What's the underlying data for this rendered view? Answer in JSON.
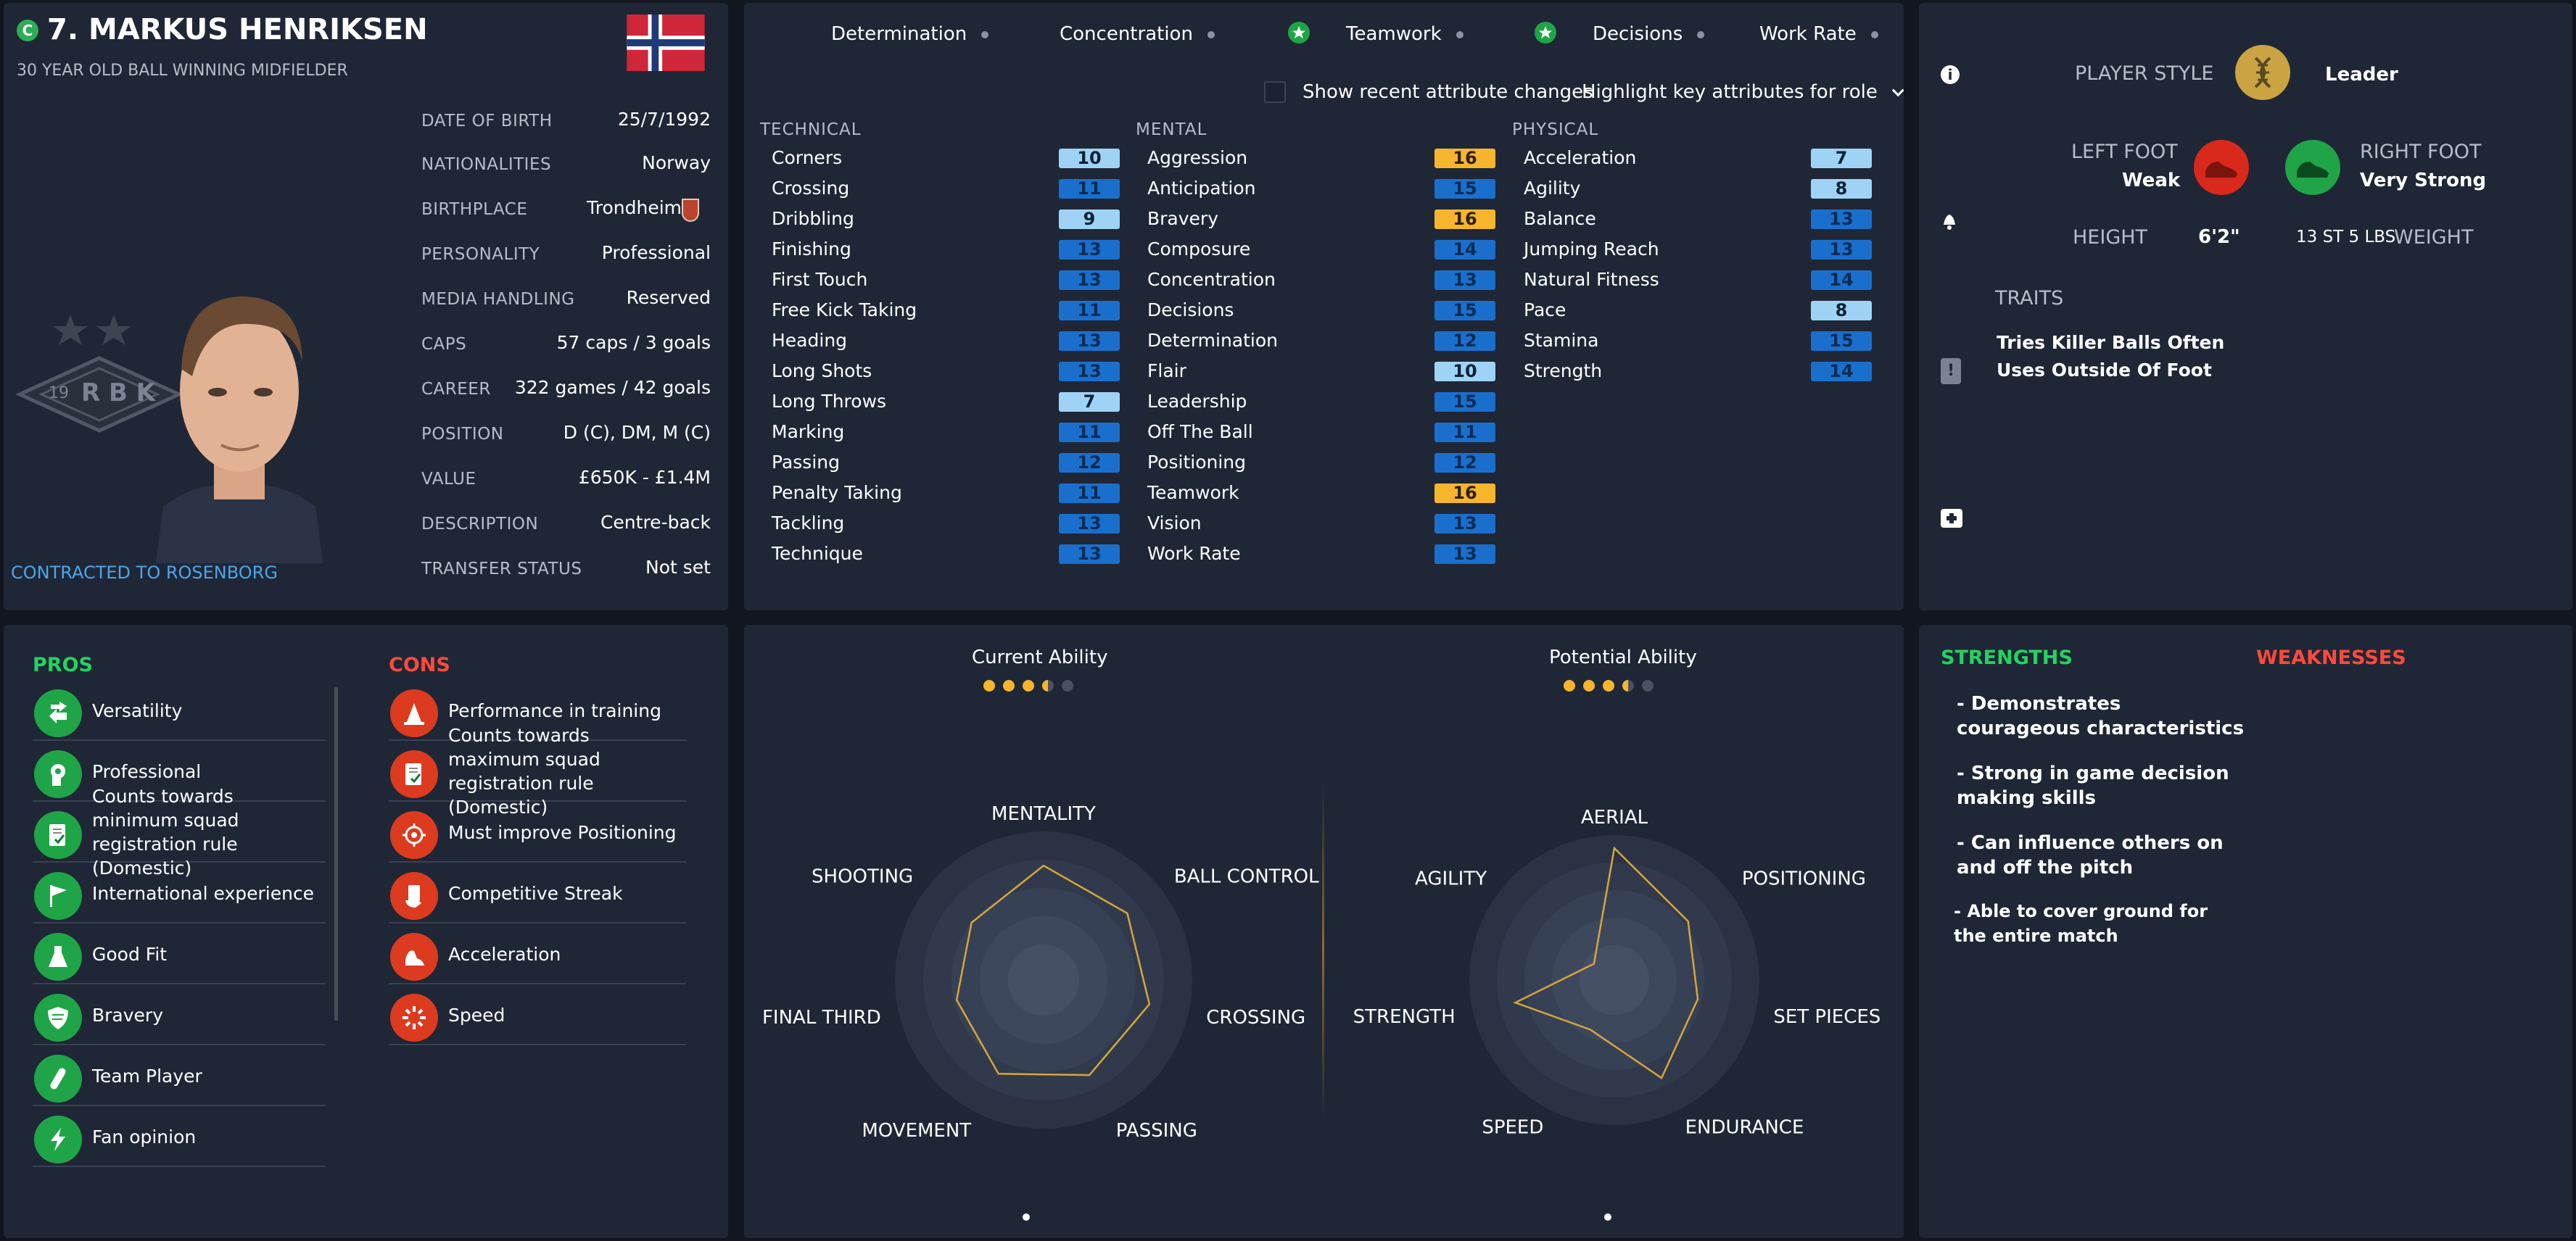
{
  "profile": {
    "club_badge_letter": "C",
    "name": "7. MARKUS HENRIKSEN",
    "subtitle": "30 YEAR OLD BALL WINNING MIDFIELDER",
    "contract": "CONTRACTED TO ROSENBORG",
    "club_crest_text": "R B K",
    "club_crest_year": "19",
    "details": [
      {
        "label": "DATE OF BIRTH",
        "value": "25/7/1992"
      },
      {
        "label": "NATIONALITIES",
        "value": "Norway"
      },
      {
        "label": "BIRTHPLACE",
        "value": "Trondheim"
      },
      {
        "label": "PERSONALITY",
        "value": "Professional"
      },
      {
        "label": "MEDIA HANDLING",
        "value": "Reserved"
      },
      {
        "label": "CAPS",
        "value": "57 caps / 3 goals"
      },
      {
        "label": "CAREER",
        "value": "322 games / 42 goals"
      },
      {
        "label": "POSITION",
        "value": "D (C), DM, M (C)"
      },
      {
        "label": "VALUE",
        "value": "£650K - £1.4M"
      },
      {
        "label": "DESCRIPTION",
        "value": "Centre-back"
      },
      {
        "label": "TRANSFER STATUS",
        "value": "Not set"
      }
    ]
  },
  "key_attributes": [
    {
      "label": "Determination",
      "starred": false
    },
    {
      "label": "Concentration",
      "starred": false
    },
    {
      "label": "Teamwork",
      "starred": true
    },
    {
      "label": "Decisions",
      "starred": true
    },
    {
      "label": "Work Rate",
      "starred": false
    }
  ],
  "controls": {
    "show_changes_label": "Show recent attribute changes",
    "highlight_dropdown": "Highlight key attributes for role"
  },
  "attributes": {
    "technical_header": "TECHNICAL",
    "mental_header": "MENTAL",
    "physical_header": "PHYSICAL",
    "technical": [
      {
        "name": "Corners",
        "value": 10,
        "style": "light"
      },
      {
        "name": "Crossing",
        "value": 11,
        "style": "blue"
      },
      {
        "name": "Dribbling",
        "value": 9,
        "style": "light"
      },
      {
        "name": "Finishing",
        "value": 13,
        "style": "blue"
      },
      {
        "name": "First Touch",
        "value": 13,
        "style": "blue"
      },
      {
        "name": "Free Kick Taking",
        "value": 11,
        "style": "blue"
      },
      {
        "name": "Heading",
        "value": 13,
        "style": "blue"
      },
      {
        "name": "Long Shots",
        "value": 13,
        "style": "blue"
      },
      {
        "name": "Long Throws",
        "value": 7,
        "style": "light"
      },
      {
        "name": "Marking",
        "value": 11,
        "style": "blue"
      },
      {
        "name": "Passing",
        "value": 12,
        "style": "blue"
      },
      {
        "name": "Penalty Taking",
        "value": 11,
        "style": "blue"
      },
      {
        "name": "Tackling",
        "value": 13,
        "style": "blue"
      },
      {
        "name": "Technique",
        "value": 13,
        "style": "blue"
      }
    ],
    "mental": [
      {
        "name": "Aggression",
        "value": 16,
        "style": "gold"
      },
      {
        "name": "Anticipation",
        "value": 15,
        "style": "blue"
      },
      {
        "name": "Bravery",
        "value": 16,
        "style": "gold"
      },
      {
        "name": "Composure",
        "value": 14,
        "style": "blue"
      },
      {
        "name": "Concentration",
        "value": 13,
        "style": "blue"
      },
      {
        "name": "Decisions",
        "value": 15,
        "style": "blue"
      },
      {
        "name": "Determination",
        "value": 12,
        "style": "blue"
      },
      {
        "name": "Flair",
        "value": 10,
        "style": "light"
      },
      {
        "name": "Leadership",
        "value": 15,
        "style": "blue"
      },
      {
        "name": "Off The Ball",
        "value": 11,
        "style": "blue"
      },
      {
        "name": "Positioning",
        "value": 12,
        "style": "blue"
      },
      {
        "name": "Teamwork",
        "value": 16,
        "style": "gold"
      },
      {
        "name": "Vision",
        "value": 13,
        "style": "blue"
      },
      {
        "name": "Work Rate",
        "value": 13,
        "style": "blue"
      }
    ],
    "physical": [
      {
        "name": "Acceleration",
        "value": 7,
        "style": "light"
      },
      {
        "name": "Agility",
        "value": 8,
        "style": "light"
      },
      {
        "name": "Balance",
        "value": 13,
        "style": "blue"
      },
      {
        "name": "Jumping Reach",
        "value": 13,
        "style": "blue"
      },
      {
        "name": "Natural Fitness",
        "value": 14,
        "style": "blue"
      },
      {
        "name": "Pace",
        "value": 8,
        "style": "light"
      },
      {
        "name": "Stamina",
        "value": 15,
        "style": "blue"
      },
      {
        "name": "Strength",
        "value": 14,
        "style": "blue"
      }
    ]
  },
  "player_info": {
    "player_style_label": "PLAYER STYLE",
    "player_style_value": "Leader",
    "left_foot_label": "LEFT FOOT",
    "left_foot_value": "Weak",
    "right_foot_label": "RIGHT FOOT",
    "right_foot_value": "Very Strong",
    "height_label": "HEIGHT",
    "height_value": "6'2\"",
    "weight_value": "13 ST 5 LBS",
    "weight_label": "WEIGHT",
    "traits_label": "TRAITS",
    "traits": [
      "Tries Killer Balls Often",
      "Uses Outside Of Foot"
    ]
  },
  "pros_label": "PROS",
  "pros": [
    {
      "text": "Versatility",
      "icon": "arrows-icon"
    },
    {
      "text": "Professional",
      "icon": "head-icon"
    },
    {
      "text": "Counts towards minimum squad registration rule (Domestic)",
      "icon": "document-check-icon"
    },
    {
      "text": "International experience",
      "icon": "flag-icon"
    },
    {
      "text": "Good Fit",
      "icon": "flask-icon"
    },
    {
      "text": "Bravery",
      "icon": "shield-icon"
    },
    {
      "text": "Team Player",
      "icon": "link-icon"
    },
    {
      "text": "Fan opinion",
      "icon": "lightning-icon"
    }
  ],
  "cons_label": "CONS",
  "cons": [
    {
      "text": "Performance in training",
      "icon": "cone-icon"
    },
    {
      "text": "Counts towards maximum squad registration rule (Domestic)",
      "icon": "document-check-icon"
    },
    {
      "text": "Must improve Positioning",
      "icon": "crosshair-icon"
    },
    {
      "text": "Competitive Streak",
      "icon": "hand-card-icon"
    },
    {
      "text": "Acceleration",
      "icon": "boot-icon"
    },
    {
      "text": "Speed",
      "icon": "burst-icon"
    }
  ],
  "abilities": {
    "current_label": "Current Ability",
    "current_stars": 3.5,
    "potential_label": "Potential Ability",
    "potential_stars": 3.5
  },
  "radar_left": {
    "labels": [
      "MENTALITY",
      "BALL CONTROL",
      "CROSSING",
      "PASSING",
      "MOVEMENT",
      "FINAL THIRD",
      "SHOOTING"
    ],
    "values": [
      0.77,
      0.72,
      0.73,
      0.71,
      0.7,
      0.6,
      0.62
    ]
  },
  "radar_right": {
    "labels": [
      "AERIAL",
      "POSITIONING",
      "SET PIECES",
      "ENDURANCE",
      "SPEED",
      "STRENGTH",
      "AGILITY"
    ],
    "values": [
      0.91,
      0.65,
      0.59,
      0.75,
      0.38,
      0.7,
      0.18
    ]
  },
  "strengths_label": "STRENGTHS",
  "weaknesses_label": "WEAKNESSES",
  "strengths": [
    "- Demonstrates courageous characteristics",
    "- Strong in game decision making skills",
    "- Can influence others on and off the pitch",
    "- Able to cover ground for the entire match"
  ],
  "colors": {
    "panel": "#1f2736",
    "accent_green": "#1fa547",
    "accent_red": "#dc3b20",
    "star_gold": "#f6b52c",
    "badge_blue": "#1a6fcd",
    "badge_light": "#9fd3f5"
  }
}
